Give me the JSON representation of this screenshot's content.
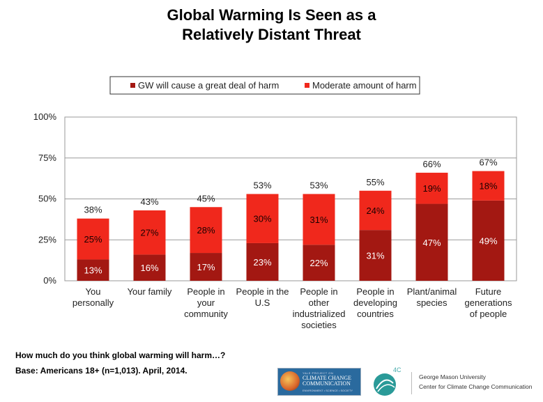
{
  "title_lines": [
    "Global Warming Is Seen as a",
    "Relatively Distant Threat"
  ],
  "footer": {
    "question": "How much do you think global warming will harm…?",
    "base": "Base: Americans 18+ (n=1,013). April, 2014."
  },
  "logos": {
    "yale_top": "YALE PROJECT ON",
    "yale_name_1": "CLIMATE CHANGE",
    "yale_name_2": "COMMUNICATION",
    "yale_bottom": "ENVIRONMENT • SCIENCE • SOCIETY",
    "fourc_label": "4C",
    "gmu_line1": "George Mason University",
    "gmu_line2": "Center for Climate Change Communication"
  },
  "chart_data": {
    "type": "bar",
    "stacked": true,
    "categories": [
      [
        "You",
        "personally"
      ],
      [
        "Your family"
      ],
      [
        "People in",
        "your",
        "community"
      ],
      [
        "People in the",
        "U.S"
      ],
      [
        "People in",
        "other",
        "industrialized",
        "societies"
      ],
      [
        "People in",
        "developing",
        "countries"
      ],
      [
        "Plant/animal",
        "species"
      ],
      [
        "Future",
        "generations",
        "of people"
      ]
    ],
    "series": [
      {
        "name": "GW will cause a great deal of harm",
        "color": "#a31812",
        "values": [
          13,
          16,
          17,
          23,
          22,
          31,
          47,
          49
        ],
        "labels": [
          "13%",
          "16%",
          "17%",
          "23%",
          "22%",
          "31%",
          "47%",
          "49%"
        ]
      },
      {
        "name": "Moderate amount of harm",
        "color": "#f0281c",
        "values": [
          25,
          27,
          28,
          30,
          31,
          24,
          19,
          18
        ],
        "labels": [
          "25%",
          "27%",
          "28%",
          "30%",
          "31%",
          "24%",
          "19%",
          "18%"
        ]
      }
    ],
    "totals": [
      "38%",
      "43%",
      "45%",
      "53%",
      "53%",
      "55%",
      "66%",
      "67%"
    ],
    "total_values": [
      38,
      43,
      45,
      53,
      53,
      55,
      66,
      67
    ],
    "ylim": [
      0,
      100
    ],
    "yticks": [
      0,
      25,
      50,
      75,
      100
    ],
    "ytick_labels": [
      "0%",
      "25%",
      "50%",
      "75%",
      "100%"
    ],
    "grid": true,
    "legend_position": "top"
  }
}
